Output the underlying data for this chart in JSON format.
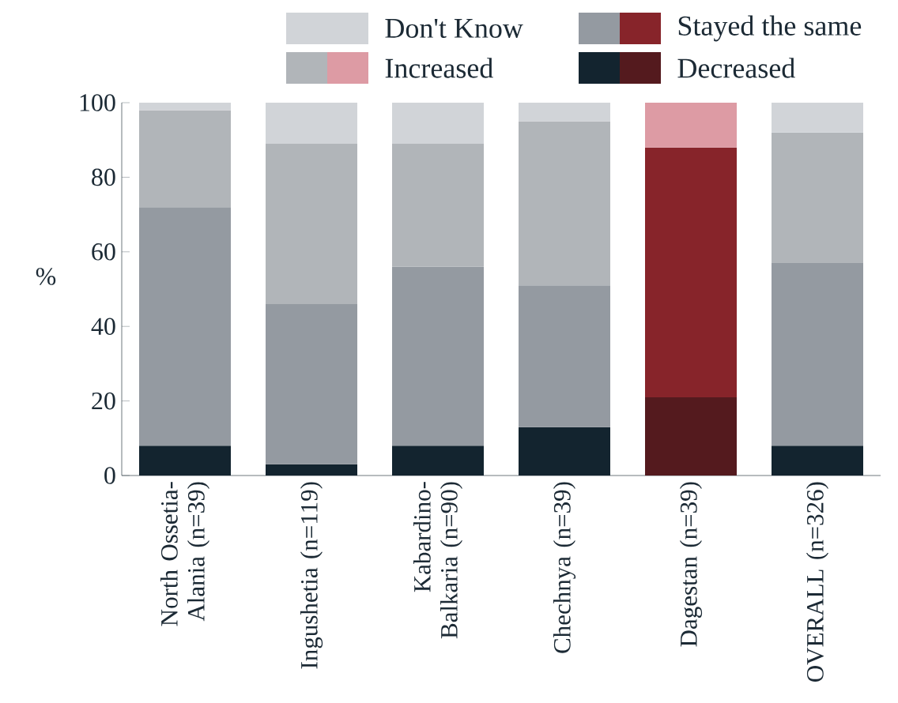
{
  "chart_data": {
    "type": "bar",
    "stacked": true,
    "ylabel": "%",
    "categories": [
      "North Ossetia-Alania (n=39)",
      "Ingushetia (n=119)",
      "Kabardino-Balkaria (n=90)",
      "Chechnya (n=39)",
      "Dagestan (n=39)",
      "OVERALL (n=326)"
    ],
    "series": [
      {
        "name": "Decreased",
        "colors": [
          "#13242f",
          "#13242f",
          "#13242f",
          "#13242f",
          "#541a1e",
          "#13242f"
        ],
        "values": [
          8,
          3,
          8,
          13,
          21,
          8
        ]
      },
      {
        "name": "Stayed the same",
        "colors": [
          "#949aa1",
          "#949aa1",
          "#949aa1",
          "#949aa1",
          "#87242a",
          "#949aa1"
        ],
        "values": [
          64,
          43,
          48,
          38,
          67,
          49
        ]
      },
      {
        "name": "Increased",
        "colors": [
          "#b1b5b9",
          "#b1b5b9",
          "#b1b5b9",
          "#b1b5b9",
          "#dd9ba4",
          "#b1b5b9"
        ],
        "values": [
          26,
          43,
          33,
          44,
          12,
          35
        ]
      },
      {
        "name": "Don't Know",
        "colors": [
          "#d1d4d8",
          "#d1d4d8",
          "#d1d4d8",
          "#d1d4d8",
          "#d1d4d8",
          "#d1d4d8"
        ],
        "values": [
          2,
          11,
          11,
          5,
          0,
          8
        ]
      }
    ],
    "ylim": [
      0,
      100
    ],
    "yticks": [
      0,
      20,
      40,
      60,
      80,
      100
    ],
    "legend": "top"
  }
}
